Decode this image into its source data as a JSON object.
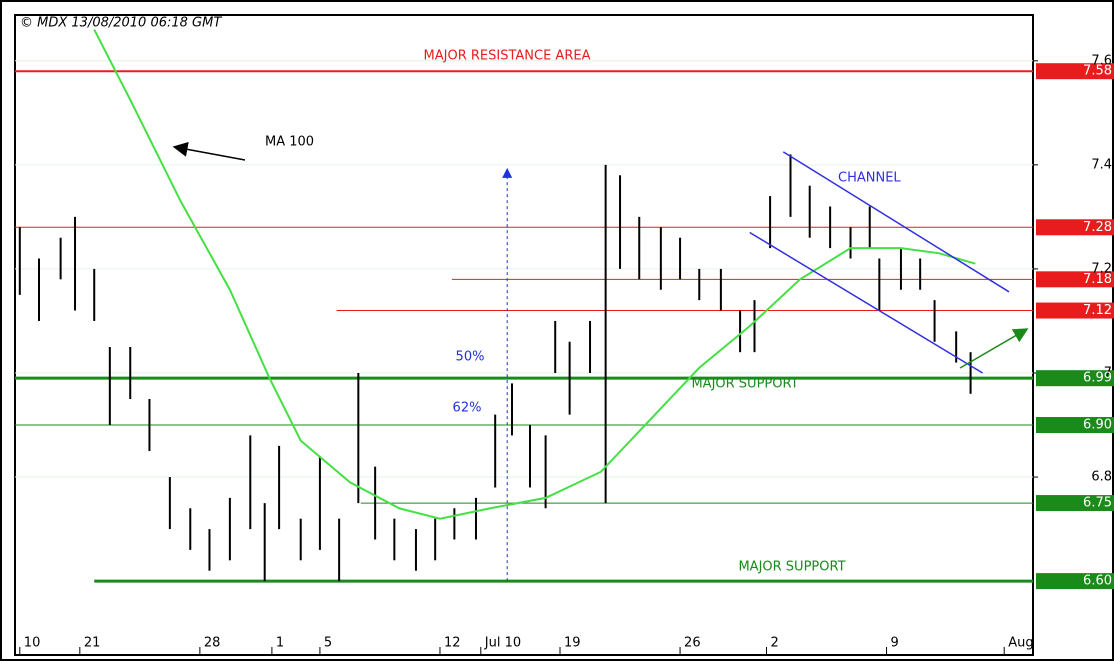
{
  "chart_data": {
    "type": "ohlc",
    "source": "© MDX 13/08/2010 06:18 GMT",
    "xlim": [
      -2.7,
      39.7
    ],
    "ylim": [
      6.458,
      7.688
    ],
    "yticks": [
      7.6,
      7.4,
      7.2,
      7.0,
      6.8
    ],
    "xticks": [
      {
        "value": -2.5,
        "label": "10"
      },
      {
        "value": 0,
        "label": "21"
      },
      {
        "value": 5,
        "label": "28"
      },
      {
        "value": 8,
        "label": "1"
      },
      {
        "value": 10,
        "label": "5"
      },
      {
        "value": 15,
        "label": "12"
      },
      {
        "value": 16.7,
        "label": "Jul 10"
      },
      {
        "value": 20,
        "label": "19"
      },
      {
        "value": 25,
        "label": "26"
      },
      {
        "value": 28.6,
        "label": "2"
      },
      {
        "value": 33.6,
        "label": "9"
      },
      {
        "value": 38.5,
        "label": "Aug"
      }
    ],
    "bars": {
      "color": "#000000",
      "x": [
        -2.5,
        -1.7,
        -0.8,
        -0.2,
        0.6,
        1.25,
        2.1,
        2.9,
        3.75,
        4.6,
        5.4,
        6.25,
        7.1,
        7.7,
        8.3,
        9.2,
        10,
        10.8,
        11.6,
        12.3,
        13.1,
        14,
        14.8,
        15.6,
        16.5,
        17.3,
        18,
        18.75,
        19.4,
        19.8,
        20.4,
        21.25,
        21.9,
        22.5,
        23.3,
        24.2,
        25,
        25.8,
        26.7,
        27.5,
        28.1,
        28.75,
        29.6,
        30.4,
        31.25,
        32.1,
        32.9,
        33.3,
        34.2,
        35,
        35.6,
        36.5,
        37.1
      ],
      "high": [
        7.28,
        7.22,
        7.26,
        7.3,
        7.2,
        7.05,
        7.05,
        6.95,
        6.8,
        6.74,
        6.7,
        6.76,
        6.88,
        6.75,
        6.86,
        6.72,
        6.84,
        6.72,
        7.0,
        6.82,
        6.72,
        6.7,
        6.72,
        6.74,
        6.76,
        6.92,
        6.98,
        6.9,
        6.88,
        7.1,
        7.06,
        7.1,
        7.4,
        7.38,
        7.3,
        7.28,
        7.26,
        7.2,
        7.2,
        7.12,
        7.14,
        7.34,
        7.42,
        7.36,
        7.32,
        7.28,
        7.32,
        7.22,
        7.24,
        7.22,
        7.14,
        7.08,
        7.04
      ],
      "low": [
        7.15,
        7.1,
        7.18,
        7.12,
        7.1,
        6.9,
        6.95,
        6.85,
        6.7,
        6.66,
        6.62,
        6.64,
        6.7,
        6.6,
        6.7,
        6.64,
        6.66,
        6.6,
        6.75,
        6.68,
        6.64,
        6.62,
        6.64,
        6.68,
        6.68,
        6.78,
        6.88,
        6.78,
        6.74,
        7.0,
        6.92,
        7.0,
        6.75,
        7.2,
        7.18,
        7.16,
        7.18,
        7.14,
        7.12,
        7.04,
        7.04,
        7.24,
        7.3,
        7.26,
        7.24,
        7.22,
        7.24,
        7.12,
        7.16,
        7.16,
        7.06,
        7.02,
        6.96
      ]
    },
    "ma": {
      "label": "MA 100",
      "color": "#44e044",
      "x": [
        0.6,
        2.1,
        4.2,
        6.25,
        7.9,
        9.2,
        11.25,
        13.3,
        15,
        17.1,
        19.4,
        21.7,
        23.75,
        25.8,
        27.9,
        30,
        32.1,
        34.2,
        35.8,
        37.3
      ],
      "values": [
        7.66,
        7.525,
        7.33,
        7.16,
        6.99,
        6.87,
        6.79,
        6.74,
        6.72,
        6.74,
        6.76,
        6.81,
        6.91,
        7.01,
        7.09,
        7.18,
        7.24,
        7.24,
        7.23,
        7.21
      ]
    },
    "levels": [
      {
        "value": 7.58,
        "label": "7.58",
        "color": "#e81c1c",
        "from": -2.7,
        "width": 2
      },
      {
        "value": 7.28,
        "label": "7.28",
        "color": "#e81c1c",
        "from": -2.7,
        "width": 1
      },
      {
        "value": 7.18,
        "label": "7.18",
        "color": "#e81c1c",
        "from": 15.5,
        "width": 1
      },
      {
        "value": 7.12,
        "label": "7.12",
        "color": "#e81c1c",
        "from": 10.7,
        "width": 1
      },
      {
        "value": 6.99,
        "label": "6.99",
        "color": "#1a8a1a",
        "from": -2.7,
        "width": 3
      },
      {
        "value": 6.9,
        "label": "6.90",
        "color": "#1a8a1a",
        "from": -2.7,
        "width": 1
      },
      {
        "value": 6.75,
        "label": "6.75",
        "color": "#1a8a1a",
        "from": 11.7,
        "width": 1
      },
      {
        "value": 6.6,
        "label": "6.60",
        "color": "#1a8a1a",
        "from": 0.6,
        "width": 3
      }
    ],
    "channel": {
      "label": "CHANNEL",
      "color": "#3030e0",
      "upper": {
        "x": [
          29.3,
          38.7
        ],
        "values": [
          7.425,
          7.156
        ]
      },
      "lower": {
        "x": [
          27.9,
          37.6
        ],
        "values": [
          7.27,
          7.0
        ]
      }
    },
    "annotations": {
      "resistance": "MAJOR RESISTANCE AREA",
      "support_upper": "MAJOR SUPPORT",
      "support_lower": "MAJOR SUPPORT",
      "fib50": "50%",
      "fib62": "62%"
    }
  }
}
